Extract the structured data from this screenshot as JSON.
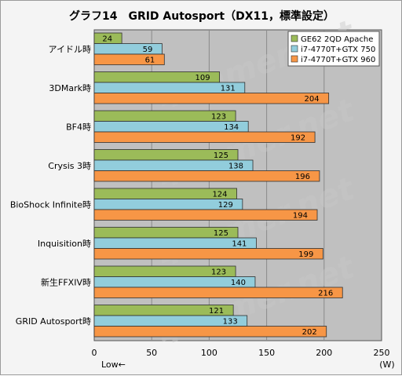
{
  "chart_data": {
    "type": "bar",
    "orientation": "horizontal",
    "title": "グラフ14　GRID Autosport（DX11，標準設定）",
    "categories": [
      "アイドル時",
      "3DMark時",
      "BF4時",
      "Crysis 3時",
      "BioShock Infinite時",
      "Inquisition時",
      "新生FFXIV時",
      "GRID Autosport時"
    ],
    "series": [
      {
        "name": "GE62 2QD Apache",
        "values": [
          24,
          109,
          123,
          125,
          124,
          125,
          123,
          121
        ]
      },
      {
        "name": "i7-4770T+GTX 750",
        "values": [
          59,
          131,
          134,
          138,
          129,
          141,
          140,
          133
        ]
      },
      {
        "name": "i7-4770T+GTX 960",
        "values": [
          61,
          204,
          192,
          196,
          194,
          199,
          216,
          202
        ]
      }
    ],
    "xlim": [
      0,
      250
    ],
    "xticks": [
      0,
      50,
      100,
      150,
      200,
      250
    ],
    "xlabel": "(W)",
    "xnote": "Low←",
    "grid": true,
    "legend_position": "top-right",
    "colors": [
      "#9bbb59",
      "#92cddc",
      "#f79646"
    ],
    "bar_stroke": "#2f2f2f",
    "plot_background": "#c0c0c0",
    "gridline_color": "#8a8a8a"
  },
  "watermark": "4Gamer.net"
}
